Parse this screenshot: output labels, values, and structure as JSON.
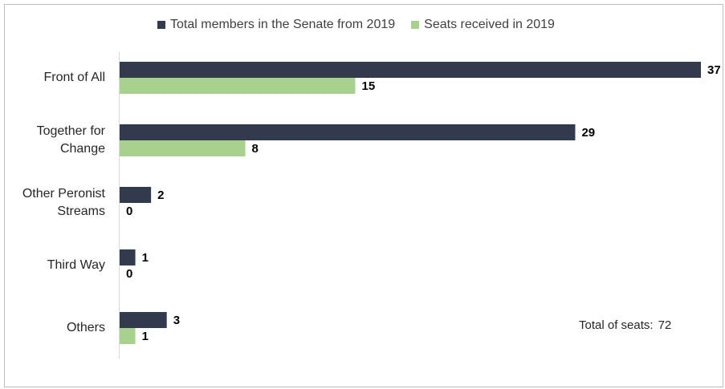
{
  "chart_data": {
    "type": "bar",
    "orientation": "horizontal",
    "categories": [
      "Front of All",
      "Together for Change",
      "Other Peronist Streams",
      "Third Way",
      "Others"
    ],
    "series": [
      {
        "name": "Total members in the Senate from 2019",
        "color": "#323a4d",
        "values": [
          37,
          29,
          2,
          1,
          3
        ]
      },
      {
        "name": "Seats received in 2019",
        "color": "#a9d18e",
        "values": [
          15,
          8,
          0,
          0,
          1
        ]
      }
    ],
    "xlim": [
      0,
      37
    ],
    "legend_position": "top",
    "grid": false,
    "annotation": {
      "label": "Total of seats:",
      "value": "72"
    }
  }
}
